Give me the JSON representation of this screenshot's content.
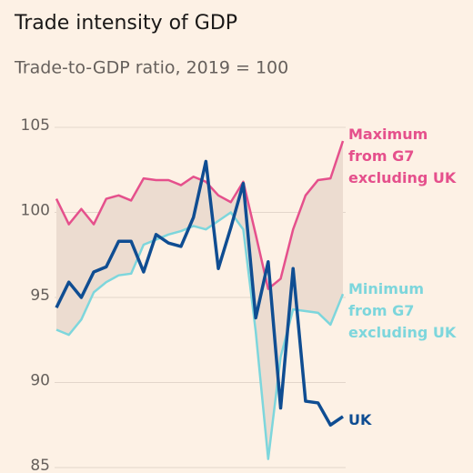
{
  "chart_data": {
    "type": "line",
    "title": "Trade intensity of GDP",
    "subtitle": "Trade-to-GDP ratio, 2019 = 100",
    "categories": [
      null,
      null,
      null,
      null,
      null,
      null,
      null,
      null,
      null,
      null,
      null,
      null,
      null,
      null,
      null,
      null,
      null,
      null,
      null,
      null,
      null,
      null,
      null,
      null
    ],
    "series": [
      {
        "name": "Maximum from G7 excluding UK",
        "color": "#e5508c",
        "values": [
          100.8,
          99.3,
          100.2,
          99.3,
          100.8,
          101.0,
          100.7,
          102.0,
          101.9,
          101.9,
          101.6,
          102.1,
          101.8,
          101.0,
          100.6,
          101.8,
          98.7,
          95.5,
          96.1,
          99.0,
          101.0,
          101.9,
          102.0,
          104.2
        ]
      },
      {
        "name": "Minimum from G7 excluding UK",
        "color": "#7dd6dc",
        "values": [
          93.1,
          92.8,
          93.7,
          95.3,
          95.9,
          96.3,
          96.4,
          98.1,
          98.4,
          98.7,
          98.9,
          99.2,
          99.0,
          99.5,
          100.0,
          99.0,
          93.0,
          85.5,
          91.5,
          94.3,
          94.2,
          94.1,
          93.4,
          95.2
        ]
      },
      {
        "name": "UK",
        "color": "#0f4d92",
        "values": [
          94.4,
          95.9,
          95.0,
          96.5,
          96.8,
          98.3,
          98.3,
          96.5,
          98.7,
          98.2,
          98.0,
          99.7,
          103.0,
          96.7,
          99.1,
          101.7,
          93.8,
          97.1,
          88.5,
          96.7,
          88.9,
          88.8,
          87.5,
          88.0
        ]
      }
    ],
    "band_color": "#ecdcd0",
    "ylim": [
      85,
      105
    ],
    "yticks": [
      85,
      90,
      95,
      100,
      105
    ],
    "grid": true
  }
}
